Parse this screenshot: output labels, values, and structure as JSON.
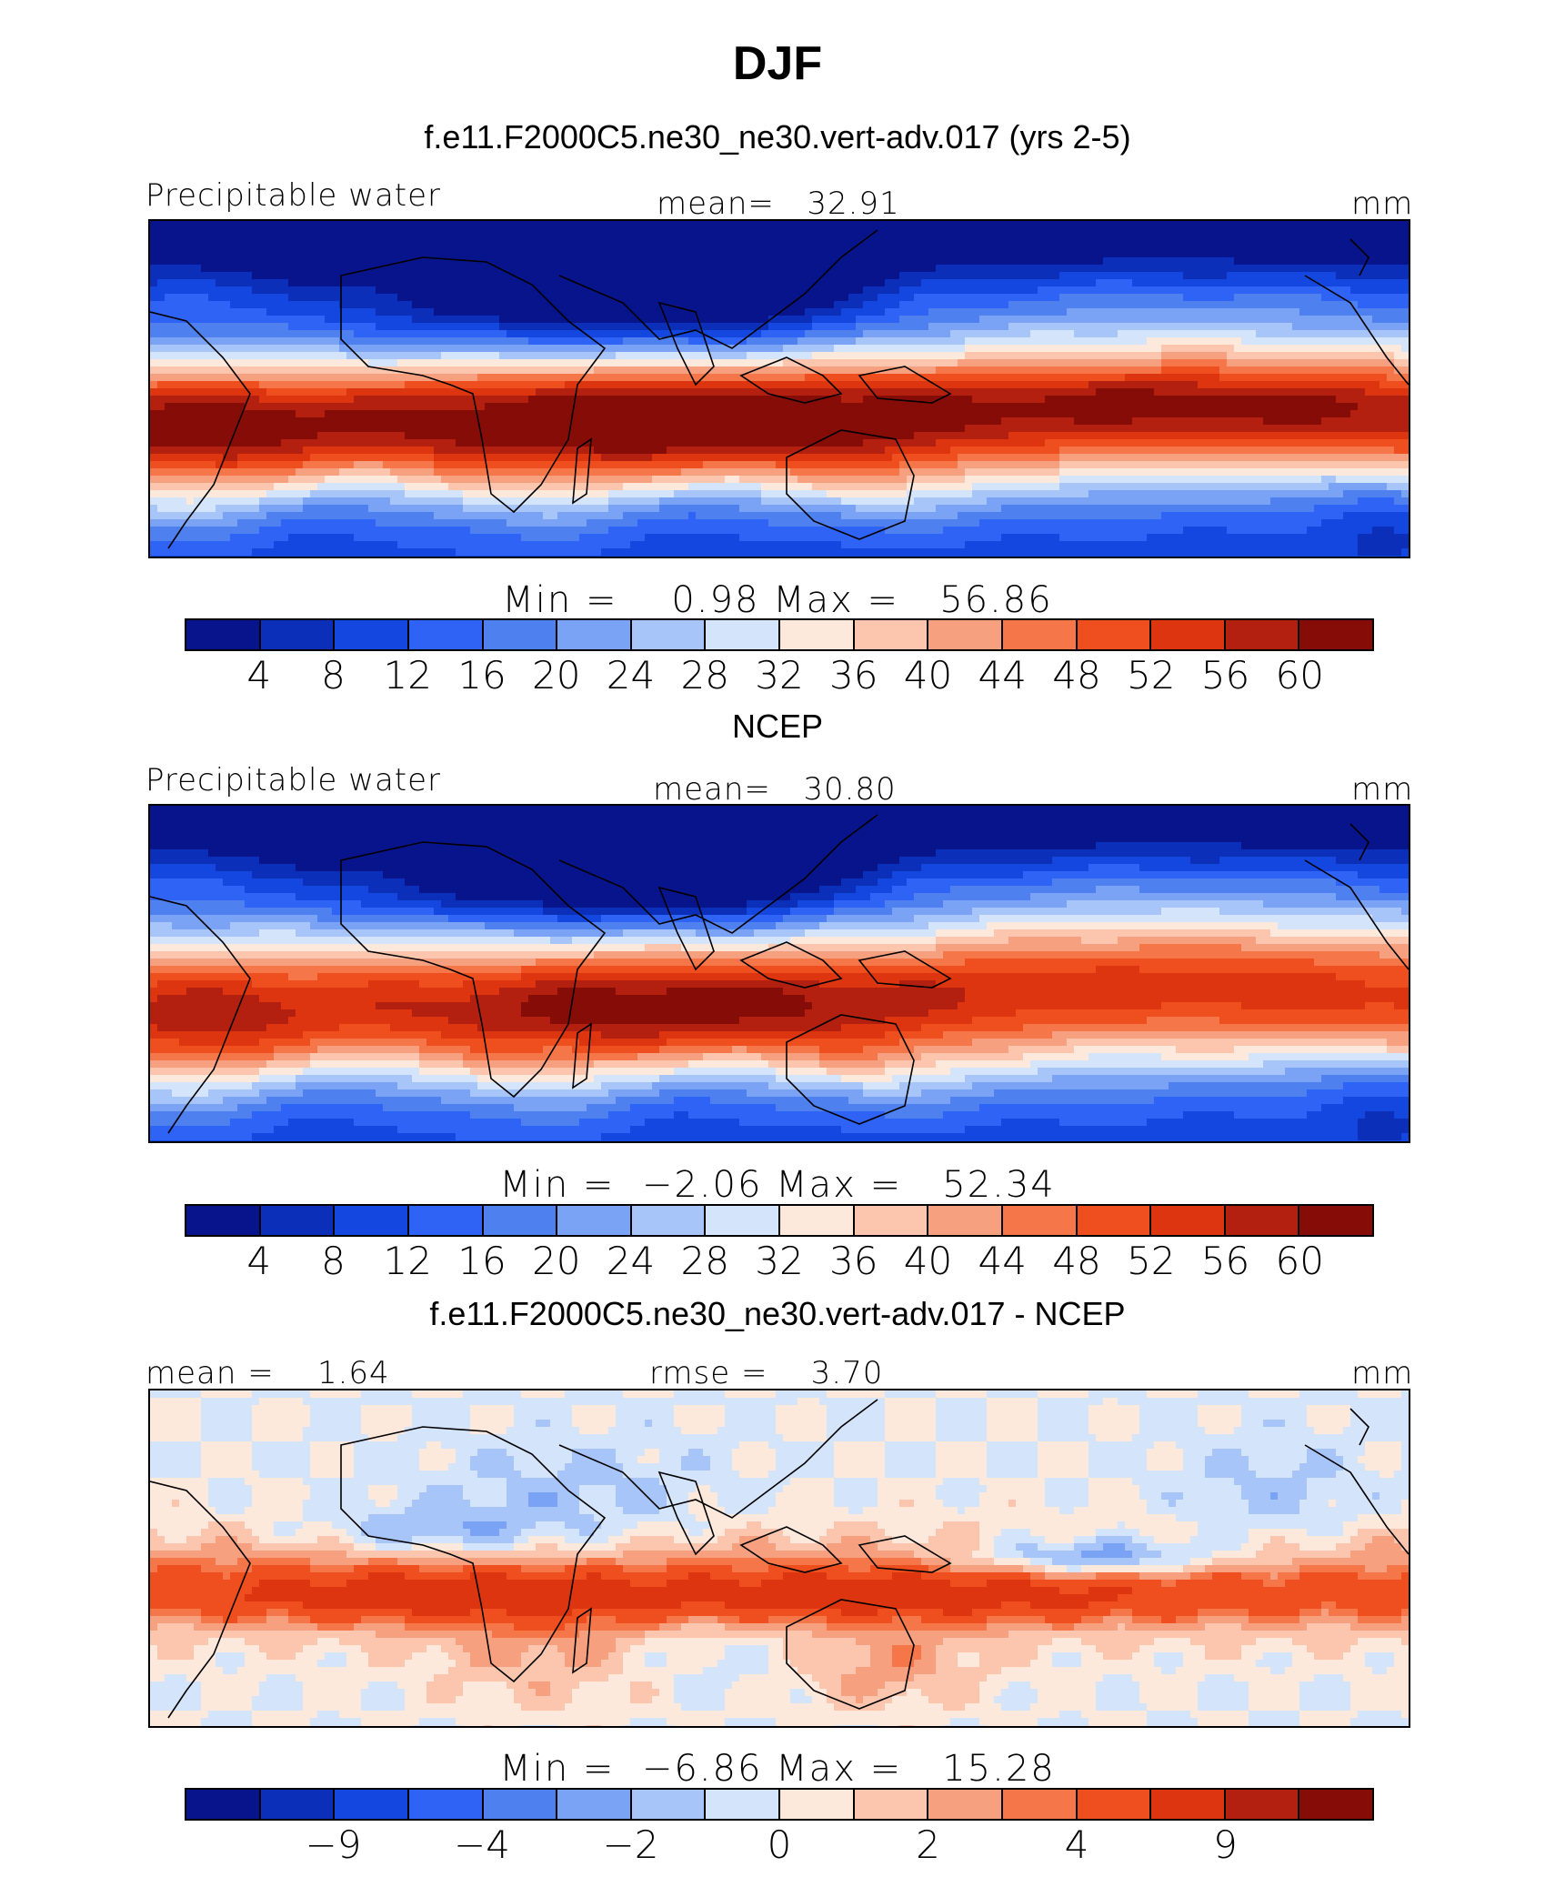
{
  "title": "DJF",
  "palette": [
    "#08148c",
    "#0b2fb8",
    "#1447e0",
    "#2e63f5",
    "#4f80f0",
    "#7aa3f5",
    "#a8c5fa",
    "#d4e4fb",
    "#fde8dc",
    "#fbc6ad",
    "#f7a080",
    "#f57648",
    "#ef4e1e",
    "#dc3510",
    "#b32010",
    "#860c07"
  ],
  "panels": [
    {
      "title": "f.e11.F2000C5.ne30_ne30.vert-adv.017 (yrs 2-5)",
      "left_label": "Precipitable water",
      "center_label": "mean=   32.91",
      "right_label": "mm",
      "minmax": "Min =    0.98 Max =   56.86",
      "colorbar_labels": [
        "4",
        "8",
        "12",
        "16",
        "20",
        "24",
        "28",
        "32",
        "36",
        "40",
        "44",
        "48",
        "52",
        "56",
        "60"
      ],
      "field": "model"
    },
    {
      "title": "NCEP",
      "left_label": "Precipitable water",
      "center_label": "mean=   30.80",
      "right_label": "mm",
      "minmax": "Min =  −2.06 Max =   52.34",
      "colorbar_labels": [
        "4",
        "8",
        "12",
        "16",
        "20",
        "24",
        "28",
        "32",
        "36",
        "40",
        "44",
        "48",
        "52",
        "56",
        "60"
      ],
      "field": "obs"
    },
    {
      "title": "f.e11.F2000C5.ne30_ne30.vert-adv.017 - NCEP",
      "left_label": "mean =    1.64",
      "center_label": "rmse =    3.70",
      "right_label": "mm",
      "minmax": "Min =  −6.86 Max =   15.28",
      "colorbar_labels": [
        "",
        "−9",
        "",
        "−4",
        "",
        "−2",
        "",
        "0",
        "",
        "2",
        "",
        "4",
        "",
        "9",
        ""
      ],
      "field": "diff"
    }
  ]
}
